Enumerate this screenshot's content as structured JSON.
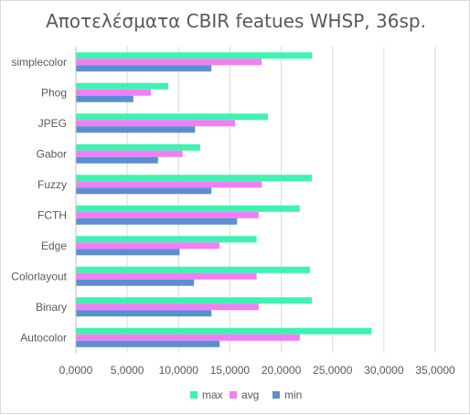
{
  "chart_data": {
    "type": "bar",
    "orientation": "horizontal",
    "title": "Αποτελέσματα CBIR featues WHSP, 36sp.",
    "categories": [
      "simplecolor",
      "Phog",
      "JPEG",
      "Gabor",
      "Fuzzy",
      "FCTH",
      "Edge",
      "Colorlayout",
      "Binary",
      "Autocolor"
    ],
    "series": [
      {
        "name": "max",
        "color": "#3ff2b1",
        "values": [
          23.0,
          9.0,
          18.7,
          12.1,
          23.0,
          21.8,
          17.6,
          22.8,
          23.0,
          28.8
        ]
      },
      {
        "name": "avg",
        "color": "#f07ff5",
        "values": [
          18.1,
          7.3,
          15.5,
          10.4,
          18.1,
          17.8,
          14.0,
          17.6,
          17.8,
          21.8
        ]
      },
      {
        "name": "min",
        "color": "#5b8fd1",
        "values": [
          13.2,
          5.6,
          11.6,
          8.0,
          13.2,
          15.7,
          10.1,
          11.5,
          13.2,
          14.0
        ]
      }
    ],
    "xlim": [
      0,
      35
    ],
    "x_ticks": [
      "0,0000",
      "5,0000",
      "10,0000",
      "15,0000",
      "20,0000",
      "25,0000",
      "30,0000",
      "35,0000"
    ],
    "x_tick_values": [
      0,
      5,
      10,
      15,
      20,
      25,
      30,
      35
    ],
    "grid": "vertical",
    "legend_position": "bottom",
    "legend_order": [
      "max",
      "avg",
      "min"
    ]
  }
}
